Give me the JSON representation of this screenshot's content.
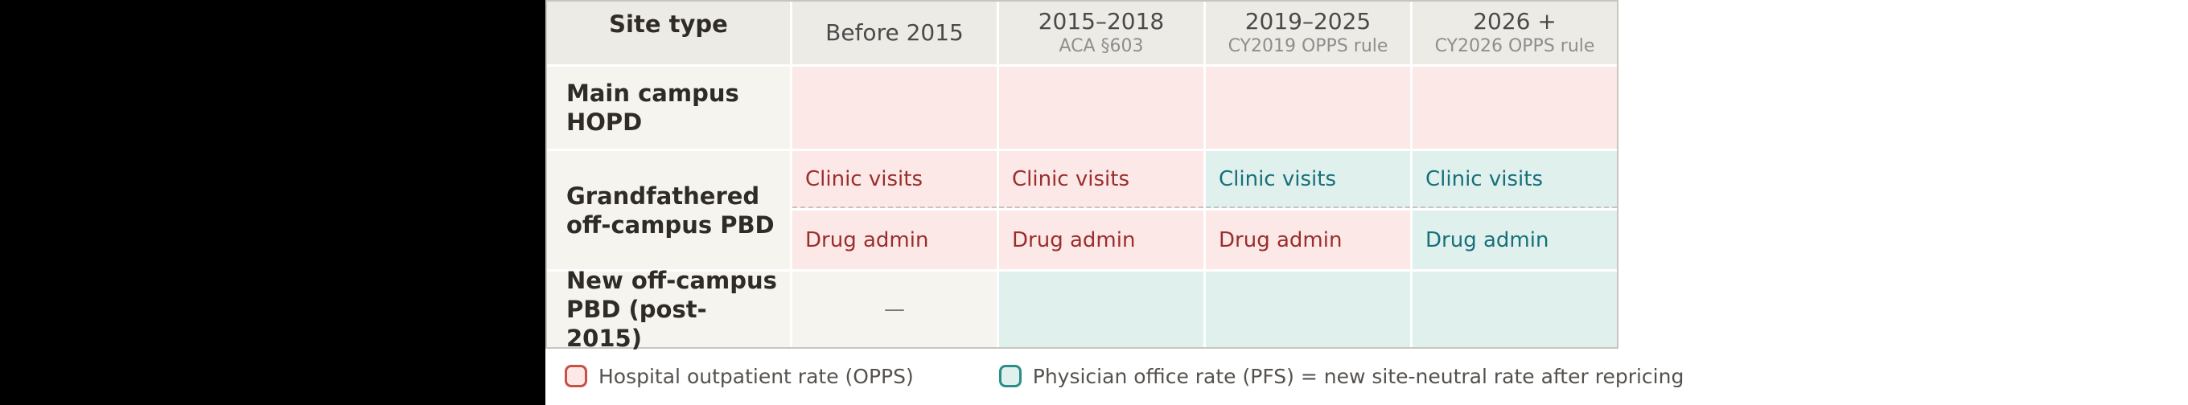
{
  "header": {
    "site_type": "Site type",
    "columns": [
      {
        "main": "Before 2015",
        "sub": ""
      },
      {
        "main": "2015–2018",
        "sub": "ACA §603"
      },
      {
        "main": "2019–2025",
        "sub": "CY2019 OPPS rule"
      },
      {
        "main": "2026 +",
        "sub": "CY2026 OPPS rule"
      }
    ]
  },
  "rows": {
    "main_campus": {
      "label": "Main campus HOPD",
      "cells": [
        "",
        "",
        "",
        ""
      ]
    },
    "grandfathered": {
      "label": "Grandfathered off-campus PBD",
      "clinic": {
        "cells": [
          "Clinic visits",
          "Clinic visits",
          "Clinic visits",
          "Clinic visits"
        ]
      },
      "drug": {
        "cells": [
          "Drug admin",
          "Drug admin",
          "Drug admin",
          "Drug admin"
        ]
      }
    },
    "new_pbd": {
      "label": "New off-campus PBD (post-2015)",
      "dash": "—",
      "cells": [
        "",
        "",
        ""
      ]
    }
  },
  "legend": {
    "opps": "Hospital outpatient rate (OPPS)",
    "pfs": "Physician office rate (PFS) = new site-neutral rate after repricing"
  },
  "colors": {
    "header_bg": "#edebe5",
    "label_bg": "#f6f4ee",
    "opps_bg": "#fce8e6",
    "opps_text": "#9b2d2d",
    "opps_border": "#c9504a",
    "pfs_bg": "#e0f0ed",
    "pfs_text": "#16707a",
    "pfs_border": "#2a8f85"
  },
  "chart_data": {
    "type": "table",
    "title": "",
    "columns": [
      "Site type",
      "Before 2015",
      "2015–2018 (ACA §603)",
      "2019–2025 (CY2019 OPPS rule)",
      "2026 + (CY2026 OPPS rule)"
    ],
    "rows": [
      {
        "site": "Main campus HOPD",
        "values": [
          "OPPS",
          "OPPS",
          "OPPS",
          "OPPS"
        ]
      },
      {
        "site": "Grandfathered off-campus PBD — Clinic visits",
        "values": [
          "OPPS",
          "OPPS",
          "PFS",
          "PFS"
        ]
      },
      {
        "site": "Grandfathered off-campus PBD — Drug admin",
        "values": [
          "OPPS",
          "OPPS",
          "OPPS",
          "PFS"
        ]
      },
      {
        "site": "New off-campus PBD (post-2015)",
        "values": [
          "—",
          "PFS",
          "PFS",
          "PFS"
        ]
      }
    ],
    "legend": [
      "Hospital outpatient rate (OPPS)",
      "Physician office rate (PFS) = new site-neutral rate after repricing"
    ],
    "legend_position": "bottom",
    "grid": "cell-borders"
  }
}
